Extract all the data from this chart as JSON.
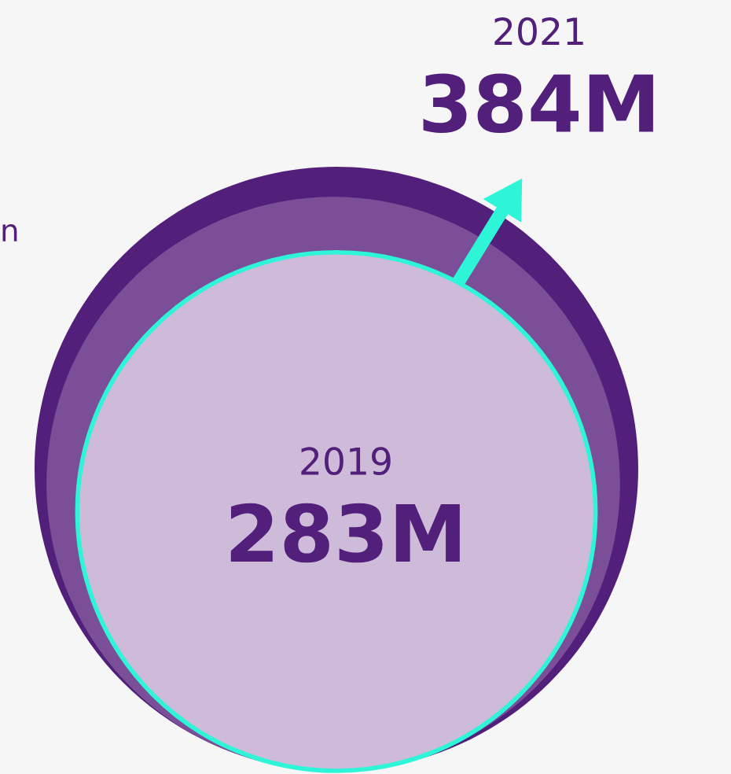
{
  "chart_data": {
    "type": "other",
    "categories": [
      "2019",
      "2021"
    ],
    "values": [
      283,
      384
    ],
    "value_labels": [
      "283M",
      "384M"
    ],
    "colors": [
      "#cdbbd9",
      "#52207a"
    ],
    "annotations": [
      "n"
    ]
  }
}
